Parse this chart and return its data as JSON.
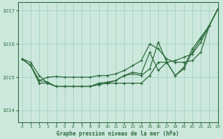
{
  "xlabel": "Graphe pression niveau de la mer (hPa)",
  "background_color": "#cce8dd",
  "grid_color": "#99ccbb",
  "line_color": "#2d6b3c",
  "xlim": [
    -0.5,
    23
  ],
  "ylim": [
    1013.65,
    1017.25
  ],
  "yticks": [
    1014,
    1015,
    1016,
    1017
  ],
  "xticks": [
    0,
    1,
    2,
    3,
    4,
    5,
    6,
    7,
    8,
    9,
    10,
    11,
    12,
    13,
    14,
    15,
    16,
    17,
    18,
    19,
    20,
    21,
    22,
    23
  ],
  "series": [
    [
      1015.55,
      1015.45,
      1015.05,
      1014.82,
      1014.72,
      1014.72,
      1014.72,
      1014.72,
      1014.72,
      1014.78,
      1014.82,
      1014.82,
      1014.82,
      1014.82,
      1014.82,
      1015.05,
      1015.45,
      1015.45,
      1015.05,
      1015.25,
      1015.75,
      1016.15,
      1016.55,
      1017.05
    ],
    [
      1015.55,
      1015.35,
      1014.9,
      1015.0,
      1015.02,
      1015.0,
      1015.0,
      1015.0,
      1015.0,
      1015.05,
      1015.05,
      1015.1,
      1015.2,
      1015.35,
      1015.5,
      1016.0,
      1015.85,
      1015.55,
      1015.45,
      1015.45,
      1015.5,
      1015.75,
      1016.55,
      1017.05
    ],
    [
      1015.55,
      1015.35,
      1014.82,
      1014.82,
      1014.72,
      1014.72,
      1014.72,
      1014.72,
      1014.72,
      1014.78,
      1014.82,
      1014.9,
      1015.05,
      1015.15,
      1015.1,
      1015.75,
      1015.2,
      1015.45,
      1015.5,
      1015.6,
      1015.7,
      1016.05,
      1016.55,
      1017.05
    ],
    [
      1015.55,
      1015.35,
      1014.9,
      1014.85,
      1014.72,
      1014.72,
      1014.72,
      1014.72,
      1014.72,
      1014.82,
      1014.85,
      1014.9,
      1015.05,
      1015.1,
      1015.05,
      1015.25,
      1016.05,
      1015.45,
      1015.05,
      1015.3,
      1015.85,
      1016.2,
      1016.55,
      1017.05
    ]
  ]
}
